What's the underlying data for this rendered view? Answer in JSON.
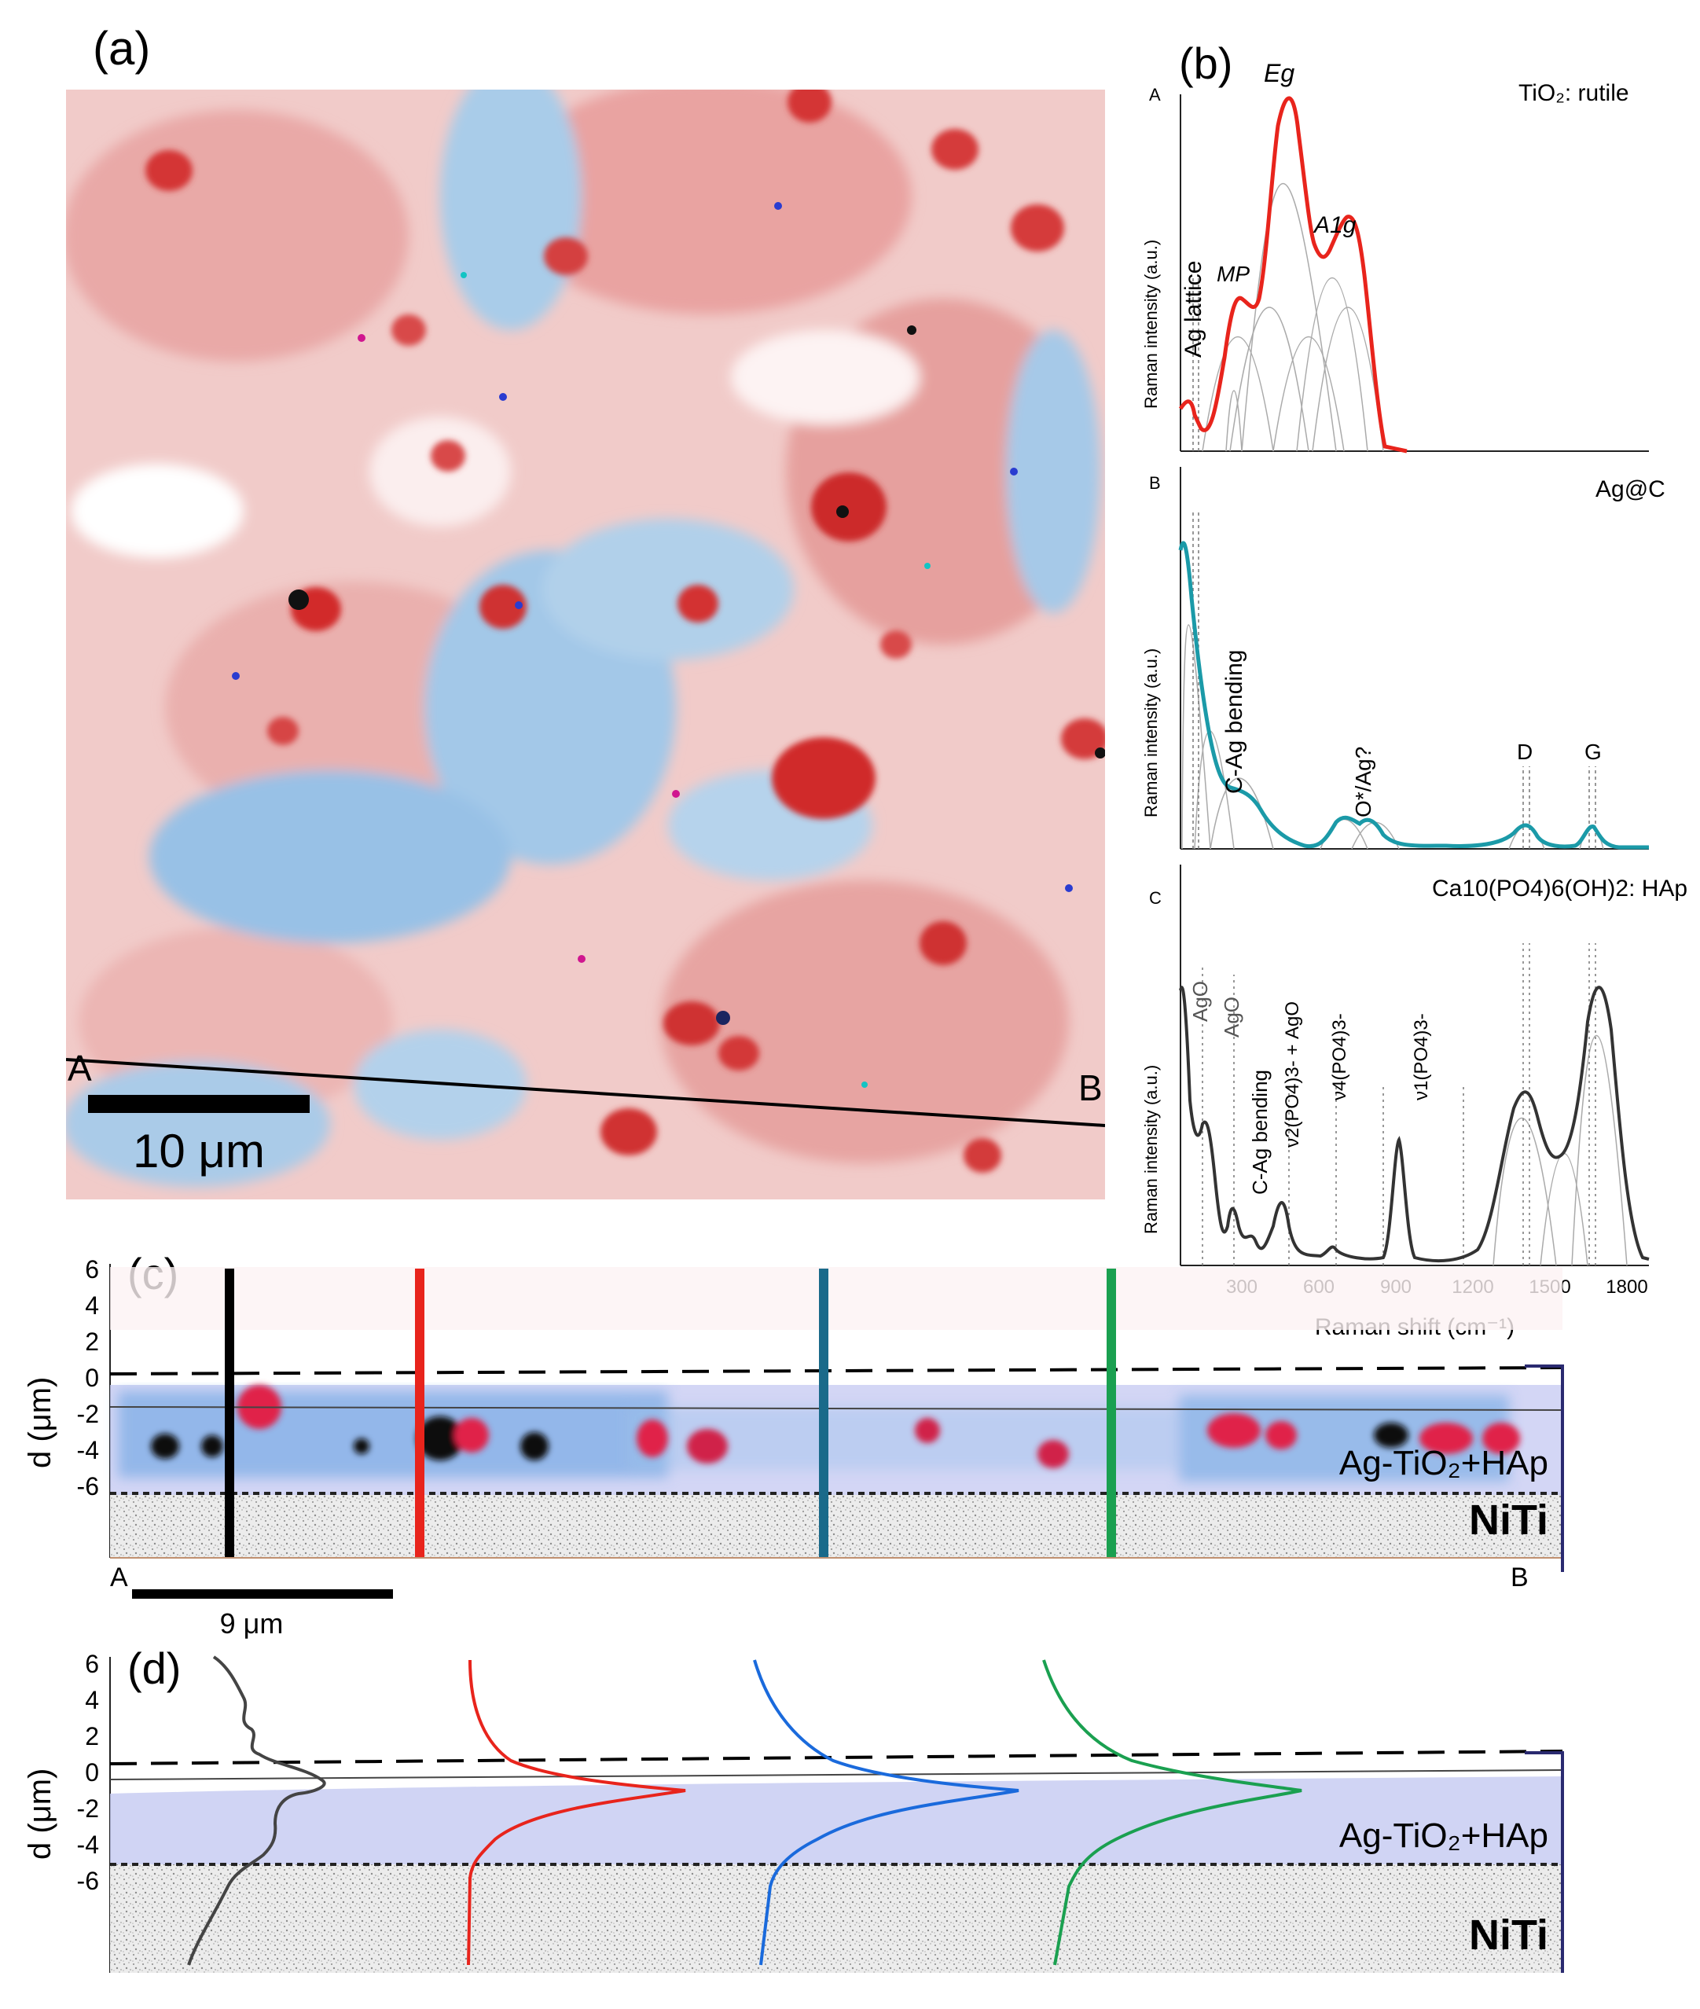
{
  "panels": {
    "a": {
      "label": "(a)",
      "point_a": "A",
      "point_b": "B",
      "scalebar": "10 μm",
      "map_colors": [
        "#d23a3a",
        "#e88a8a",
        "#f4d4d4",
        "#ffffff",
        "#9cc4e6",
        "#5c9bd4"
      ]
    },
    "b": {
      "label": "(b)",
      "xlabel": "Raman shift (cm⁻¹)",
      "ylabel": "Raman intensity (a.u.)",
      "xticks": [
        "300",
        "600",
        "900",
        "1200",
        "1500",
        "1800"
      ],
      "sub": [
        {
          "letter": "A",
          "title": "TiO₂: rutile",
          "color": "#e8241c",
          "peaks": [
            "Ag lattice",
            "MP",
            "Eg",
            "A1g"
          ]
        },
        {
          "letter": "B",
          "title": "Ag@C",
          "color": "#1b9aa8",
          "peaks": [
            "C-Ag bending",
            "O*/Ag?",
            "D",
            "G"
          ]
        },
        {
          "letter": "C",
          "title": "Ca10(PO4)6(OH)2: HAp",
          "color": "#333333",
          "peaks": [
            "AgO",
            "AgO",
            "C-Ag bending",
            "ν2(PO4)3- + AgO",
            "ν4(PO4)3-",
            "ν1(PO4)3-"
          ]
        }
      ]
    },
    "c": {
      "label": "(c)",
      "ylabel": "d (μm)",
      "yticks": [
        "6",
        "4",
        "2",
        "0",
        "-2",
        "-4",
        "-6"
      ],
      "layer": "Ag-TiO₂+HAp",
      "substrate": "NiTi",
      "point_a": "A",
      "point_b": "B",
      "scalebar": "9 μm",
      "line_colors": [
        "#000000",
        "#e8241c",
        "#1a6a8a",
        "#1aa050"
      ]
    },
    "d": {
      "label": "(d)",
      "ylabel": "d (μm)",
      "yticks": [
        "6",
        "4",
        "2",
        "0",
        "-2",
        "-4",
        "-6"
      ],
      "layer": "Ag-TiO₂+HAp",
      "substrate": "NiTi",
      "profile_colors": [
        "#444444",
        "#e8241c",
        "#1a6adc",
        "#1aa050"
      ]
    }
  }
}
